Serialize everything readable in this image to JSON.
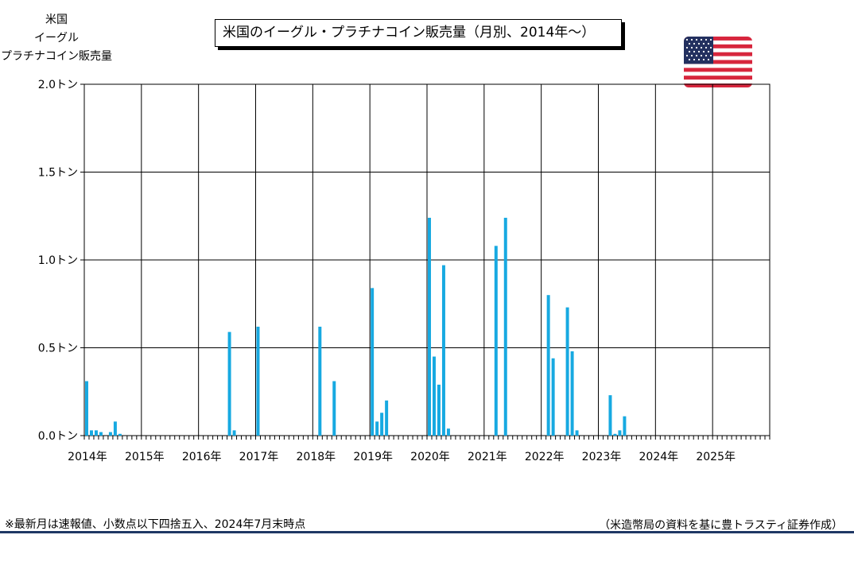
{
  "ylabel_lines": [
    "米国",
    "イーグル",
    "プラチナコイン販売量"
  ],
  "title": "米国のイーグル・プラチナコイン販売量（月別、2014年～）",
  "note": "※最新月は速報値、小数点以下四捨五入、2024年7月末時点",
  "source": "（米造幣局の資料を基に豊トラスティ証券作成）",
  "colors": {
    "bar": "#17a9e1",
    "grid": "#000000",
    "rule": "#1f3864"
  },
  "flag_icon": "us-flag-icon",
  "chart_data": {
    "type": "bar",
    "title": "米国のイーグル・プラチナコイン販売量（月別、2014年～）",
    "ylabel": "米国 イーグル プラチナコイン販売量",
    "yunit": "トン",
    "ylim": [
      0,
      2.0
    ],
    "yticks": [
      "0.0トン",
      "0.5トン",
      "1.0トン",
      "1.5トン",
      "2.0トン"
    ],
    "ytick_values": [
      0,
      0.5,
      1.0,
      1.5,
      2.0
    ],
    "xticks": [
      "2014年",
      "2015年",
      "2016年",
      "2017年",
      "2018年",
      "2019年",
      "2020年",
      "2021年",
      "2022年",
      "2023年",
      "2024年",
      "2025年"
    ],
    "months_total": 144,
    "grid": true,
    "x_label_format": "YYYY-MM",
    "points": [
      {
        "x": "2014-01",
        "y": 0.31
      },
      {
        "x": "2014-02",
        "y": 0.03
      },
      {
        "x": "2014-03",
        "y": 0.03
      },
      {
        "x": "2014-04",
        "y": 0.02
      },
      {
        "x": "2014-06",
        "y": 0.02
      },
      {
        "x": "2014-07",
        "y": 0.08
      },
      {
        "x": "2014-08",
        "y": 0.01
      },
      {
        "x": "2016-07",
        "y": 0.59
      },
      {
        "x": "2016-08",
        "y": 0.03
      },
      {
        "x": "2017-01",
        "y": 0.62
      },
      {
        "x": "2018-02",
        "y": 0.62
      },
      {
        "x": "2018-05",
        "y": 0.31
      },
      {
        "x": "2019-01",
        "y": 0.84
      },
      {
        "x": "2019-02",
        "y": 0.08
      },
      {
        "x": "2019-03",
        "y": 0.13
      },
      {
        "x": "2019-04",
        "y": 0.2
      },
      {
        "x": "2020-01",
        "y": 1.24
      },
      {
        "x": "2020-02",
        "y": 0.45
      },
      {
        "x": "2020-03",
        "y": 0.29
      },
      {
        "x": "2020-04",
        "y": 0.97
      },
      {
        "x": "2020-05",
        "y": 0.04
      },
      {
        "x": "2021-03",
        "y": 1.08
      },
      {
        "x": "2021-05",
        "y": 1.24
      },
      {
        "x": "2022-02",
        "y": 0.8
      },
      {
        "x": "2022-03",
        "y": 0.44
      },
      {
        "x": "2022-06",
        "y": 0.73
      },
      {
        "x": "2022-07",
        "y": 0.48
      },
      {
        "x": "2022-08",
        "y": 0.03
      },
      {
        "x": "2023-03",
        "y": 0.23
      },
      {
        "x": "2023-04",
        "y": 0.01
      },
      {
        "x": "2023-05",
        "y": 0.03
      },
      {
        "x": "2023-06",
        "y": 0.11
      }
    ]
  }
}
